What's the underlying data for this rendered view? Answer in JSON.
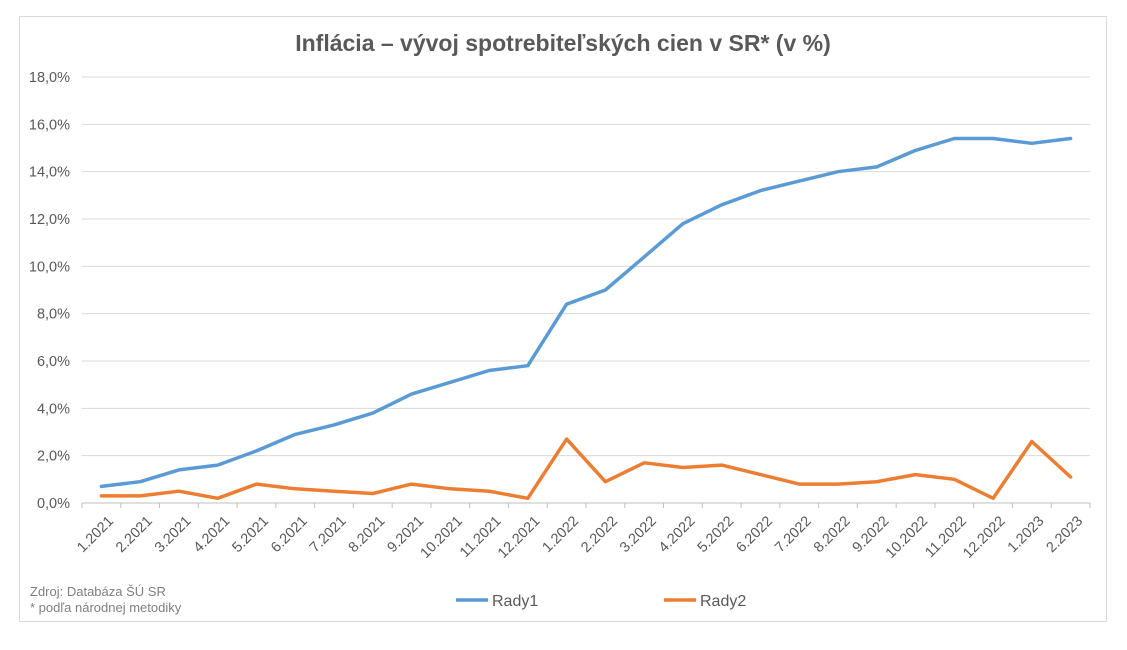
{
  "chart_data": {
    "type": "line",
    "title": "Inflácia –  vývoj spotrebiteľských cien v SR* (v %)",
    "xlabel": "",
    "ylabel": "",
    "x": [
      "1.2021",
      "2.2021",
      "3.2021",
      "4.2021",
      "5.2021",
      "6.2021",
      "7.2021",
      "8.2021",
      "9.2021",
      "10.2021",
      "11.2021",
      "12.2021",
      "1.2022",
      "2.2022",
      "3.2022",
      "4.2022",
      "5.2022",
      "6.2022",
      "7.2022",
      "8.2022",
      "9.2022",
      "10.2022",
      "11.2022",
      "12.2022",
      "1.2023",
      "2.2023"
    ],
    "y_ticks": [
      "0,0%",
      "2,0%",
      "4,0%",
      "6,0%",
      "8,0%",
      "10,0%",
      "12,0%",
      "14,0%",
      "16,0%",
      "18,0%"
    ],
    "ylim": [
      0,
      18
    ],
    "grid": true,
    "legend_position": "bottom",
    "series": [
      {
        "name": "Rady1",
        "color": "#5b9bd5",
        "values": [
          0.7,
          0.9,
          1.4,
          1.6,
          2.2,
          2.9,
          3.3,
          3.8,
          4.6,
          5.1,
          5.6,
          5.8,
          8.4,
          9.0,
          10.4,
          11.8,
          12.6,
          13.2,
          13.6,
          14.0,
          14.2,
          14.9,
          15.4,
          15.4,
          15.2,
          15.4
        ]
      },
      {
        "name": "Rady2",
        "color": "#ed7d31",
        "values": [
          0.3,
          0.3,
          0.5,
          0.2,
          0.8,
          0.6,
          0.5,
          0.4,
          0.8,
          0.6,
          0.5,
          0.2,
          2.7,
          0.9,
          1.7,
          1.5,
          1.6,
          1.2,
          0.8,
          0.8,
          0.9,
          1.2,
          1.0,
          0.2,
          2.6,
          1.1
        ]
      }
    ]
  },
  "source": {
    "line1": "Zdroj: Databáza ŠÚ SR",
    "line2": "* podľa národnej metodiky"
  }
}
